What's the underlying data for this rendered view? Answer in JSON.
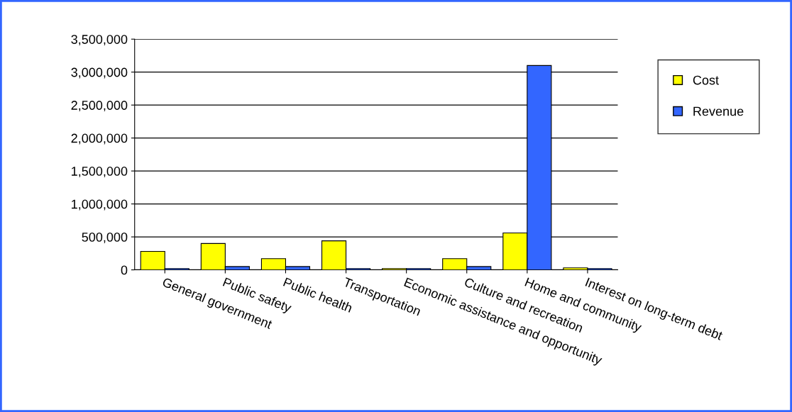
{
  "chart_data": {
    "type": "bar",
    "categories": [
      "General government",
      "Public safety",
      "Public health",
      "Transportation",
      "Economic assistance and opportunity",
      "Culture and recreation",
      "Home and community",
      "Interest on long-term debt"
    ],
    "series": [
      {
        "name": "Cost",
        "color": "#ffff00",
        "values": [
          280000,
          400000,
          170000,
          440000,
          20000,
          170000,
          560000,
          30000
        ]
      },
      {
        "name": "Revenue",
        "color": "#3366ff",
        "values": [
          20000,
          50000,
          50000,
          20000,
          20000,
          50000,
          3100000,
          20000
        ]
      }
    ],
    "ylim": [
      0,
      3500000
    ],
    "yticks": [
      {
        "value": 0,
        "label": "0"
      },
      {
        "value": 500000,
        "label": "500,000"
      },
      {
        "value": 1000000,
        "label": "1,000,000"
      },
      {
        "value": 1500000,
        "label": "1,500,000"
      },
      {
        "value": 2000000,
        "label": "2,000,000"
      },
      {
        "value": 2500000,
        "label": "2,500,000"
      },
      {
        "value": 3000000,
        "label": "3,000,000"
      },
      {
        "value": 3500000,
        "label": "3,500,000"
      }
    ],
    "grid": "y",
    "legend": "right"
  }
}
